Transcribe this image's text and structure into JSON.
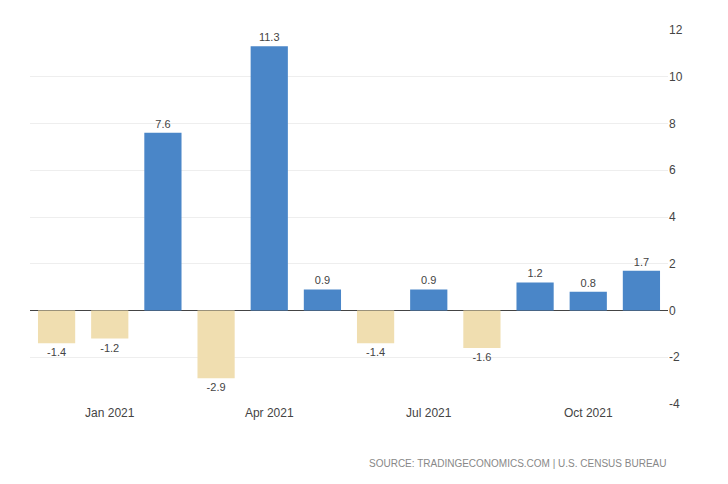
{
  "chart_data": {
    "type": "bar",
    "categories": [
      null,
      "Jan 2021",
      null,
      null,
      "Apr 2021",
      null,
      null,
      "Jul 2021",
      null,
      null,
      "Oct 2021",
      null
    ],
    "values": [
      -1.4,
      -1.2,
      7.6,
      -2.9,
      11.3,
      0.9,
      -1.4,
      0.9,
      -1.6,
      1.2,
      0.8,
      1.7
    ],
    "colors": [
      "#f0deb0",
      "#f0deb0",
      "#4a86c8",
      "#f0deb0",
      "#4a86c8",
      "#4a86c8",
      "#f0deb0",
      "#4a86c8",
      "#f0deb0",
      "#4a86c8",
      "#4a86c8",
      "#4a86c8"
    ],
    "ylim": [
      -4,
      12
    ],
    "yticks": [
      -4,
      -2,
      0,
      2,
      4,
      6,
      8,
      10,
      12
    ],
    "grid": true,
    "data_labels": true,
    "annotations": [
      "SOURCE: TRADINGECONOMICS.COM | U.S. CENSUS BUREAU"
    ]
  }
}
